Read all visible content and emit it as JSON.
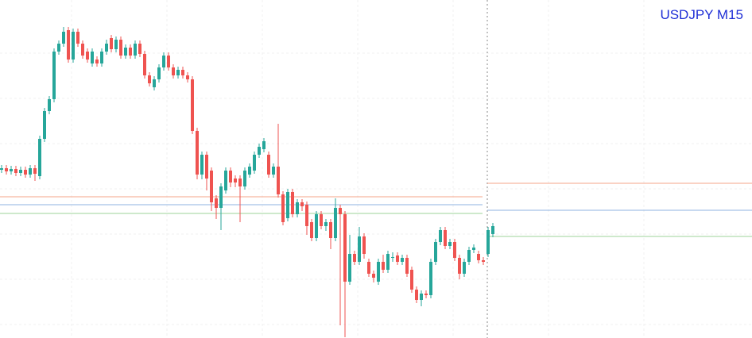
{
  "chart_data": {
    "type": "candlestick",
    "title": "USDJPY M15",
    "ylim": [
      0,
      426
    ],
    "grid": true,
    "up_color": "#26a69a",
    "down_color": "#ef5350",
    "open": [
      212,
      214,
      210,
      213,
      208,
      212,
      206,
      214,
      204,
      251,
      286,
      301,
      361,
      371,
      388,
      351,
      386,
      371,
      361,
      346,
      351,
      346,
      361,
      378,
      364,
      376,
      356,
      366,
      356,
      371,
      358,
      331,
      316,
      326,
      341,
      356,
      341,
      331,
      338,
      331,
      326,
      261,
      206,
      231,
      211,
      176,
      164,
      186,
      211,
      201,
      201,
      191,
      206,
      211,
      231,
      238,
      231,
      206,
      216,
      181,
      151,
      184,
      156,
      171,
      168,
      146,
      126,
      156,
      141,
      146,
      126,
      164,
      156,
      71,
      106,
      96,
      128,
      96,
      81,
      71,
      96,
      86,
      101,
      104,
      96,
      101,
      86,
      61,
      48,
      56,
      54,
      96,
      121,
      136,
      116,
      121,
      101,
      81,
      96,
      111,
      106,
      98,
      106,
      131
    ],
    "high": [
      218,
      218,
      217,
      217,
      216,
      216,
      218,
      218,
      255,
      290,
      305,
      365,
      375,
      392,
      392,
      390,
      390,
      375,
      365,
      365,
      355,
      365,
      376,
      382,
      380,
      380,
      370,
      370,
      375,
      375,
      362,
      335,
      330,
      345,
      360,
      360,
      345,
      342,
      342,
      335,
      330,
      265,
      235,
      235,
      215,
      180,
      195,
      215,
      215,
      205,
      205,
      215,
      220,
      235,
      245,
      252,
      235,
      220,
      270,
      185,
      188,
      188,
      175,
      175,
      172,
      150,
      160,
      160,
      150,
      150,
      176,
      168,
      160,
      130,
      110,
      140,
      132,
      100,
      85,
      100,
      105,
      110,
      108,
      108,
      105,
      105,
      90,
      65,
      60,
      60,
      100,
      125,
      140,
      140,
      125,
      125,
      105,
      100,
      115,
      118,
      110,
      102,
      140,
      145
    ],
    "low": [
      208,
      206,
      206,
      204,
      204,
      202,
      202,
      198,
      200,
      247,
      282,
      297,
      357,
      367,
      347,
      347,
      367,
      352,
      347,
      342,
      342,
      342,
      357,
      360,
      360,
      352,
      352,
      352,
      352,
      354,
      327,
      317,
      312,
      322,
      337,
      337,
      327,
      327,
      327,
      322,
      257,
      200,
      200,
      186,
      160,
      150,
      136,
      182,
      190,
      190,
      146,
      187,
      202,
      207,
      227,
      234,
      202,
      202,
      177,
      142,
      147,
      152,
      152,
      160,
      130,
      122,
      122,
      137,
      135,
      112,
      122,
      16,
      1,
      67,
      92,
      92,
      100,
      77,
      70,
      67,
      82,
      82,
      96,
      92,
      92,
      77,
      57,
      44,
      40,
      50,
      50,
      92,
      117,
      112,
      112,
      97,
      74,
      77,
      92,
      107,
      94,
      92,
      102,
      127
    ],
    "close": [
      214,
      210,
      213,
      208,
      212,
      206,
      214,
      207,
      251,
      286,
      301,
      361,
      371,
      386,
      351,
      386,
      371,
      356,
      351,
      361,
      346,
      361,
      371,
      364,
      376,
      356,
      366,
      356,
      371,
      358,
      331,
      321,
      326,
      341,
      356,
      341,
      331,
      338,
      331,
      326,
      261,
      206,
      231,
      201,
      171,
      164,
      191,
      211,
      196,
      196,
      191,
      211,
      216,
      231,
      241,
      248,
      206,
      216,
      181,
      146,
      184,
      156,
      171,
      166,
      141,
      126,
      156,
      141,
      146,
      126,
      164,
      156,
      71,
      106,
      96,
      128,
      106,
      81,
      76,
      96,
      86,
      106,
      102,
      96,
      101,
      81,
      61,
      48,
      56,
      54,
      96,
      121,
      136,
      116,
      121,
      101,
      81,
      96,
      111,
      114,
      98,
      96,
      136,
      141
    ],
    "levels": [
      {
        "color": "#f4a58a",
        "left": 178,
        "right": 195
      },
      {
        "color": "#8fb3e0",
        "left": 168,
        "right": 161
      },
      {
        "color": "#9ed39a",
        "left": 157,
        "right": 128
      }
    ]
  }
}
